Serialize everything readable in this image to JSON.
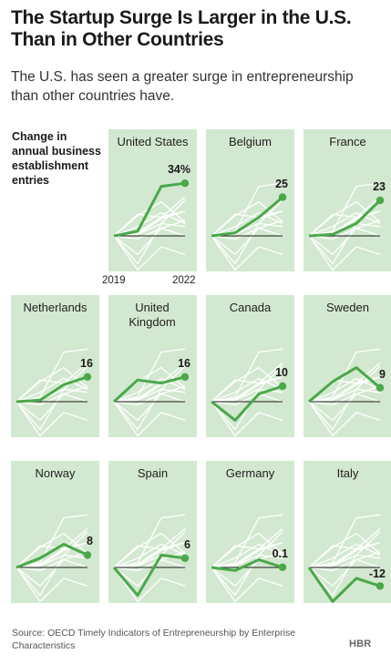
{
  "title": "The Startup Surge Is Larger in the U.S. Than in Other Countries",
  "subtitle": "The U.S. has seen a greater surge in entrepreneurship than other countries have.",
  "ylabel": "Change in annual business establishment entries",
  "x_ticks": [
    "2019",
    "2022"
  ],
  "source": "Source: OECD Timely Indicators of Entrepreneurship by Enterprise Characteristics",
  "logo": "HBR",
  "colors": {
    "panel_bg": "#d3e8d0",
    "highlight": "#4aa84a",
    "others": "#ffffff",
    "baseline": "#1a1a1a"
  },
  "chart_data": {
    "type": "line",
    "x": [
      2019,
      2020,
      2021,
      2022
    ],
    "ylim": [
      -25,
      40
    ],
    "series": [
      {
        "name": "United States",
        "values": [
          0,
          3,
          32,
          34
        ],
        "end_label": "34%"
      },
      {
        "name": "Belgium",
        "values": [
          0,
          2,
          12,
          25
        ],
        "end_label": "25"
      },
      {
        "name": "France",
        "values": [
          0,
          1,
          8,
          23
        ],
        "end_label": "23"
      },
      {
        "name": "Netherlands",
        "values": [
          0,
          1,
          11,
          16
        ],
        "end_label": "16"
      },
      {
        "name": "United Kingdom",
        "values": [
          0,
          14,
          12,
          16
        ],
        "end_label": "16"
      },
      {
        "name": "Canada",
        "values": [
          0,
          -12,
          5,
          10
        ],
        "end_label": "10"
      },
      {
        "name": "Sweden",
        "values": [
          0,
          13,
          22,
          9
        ],
        "end_label": "9"
      },
      {
        "name": "Norway",
        "values": [
          0,
          6,
          15,
          8
        ],
        "end_label": "8"
      },
      {
        "name": "Spain",
        "values": [
          0,
          -18,
          8,
          6
        ],
        "end_label": "6"
      },
      {
        "name": "Germany",
        "values": [
          0,
          -2,
          5,
          0.1
        ],
        "end_label": "0.1"
      },
      {
        "name": "Italy",
        "values": [
          0,
          -22,
          -7,
          -12
        ],
        "end_label": "-12"
      }
    ]
  }
}
